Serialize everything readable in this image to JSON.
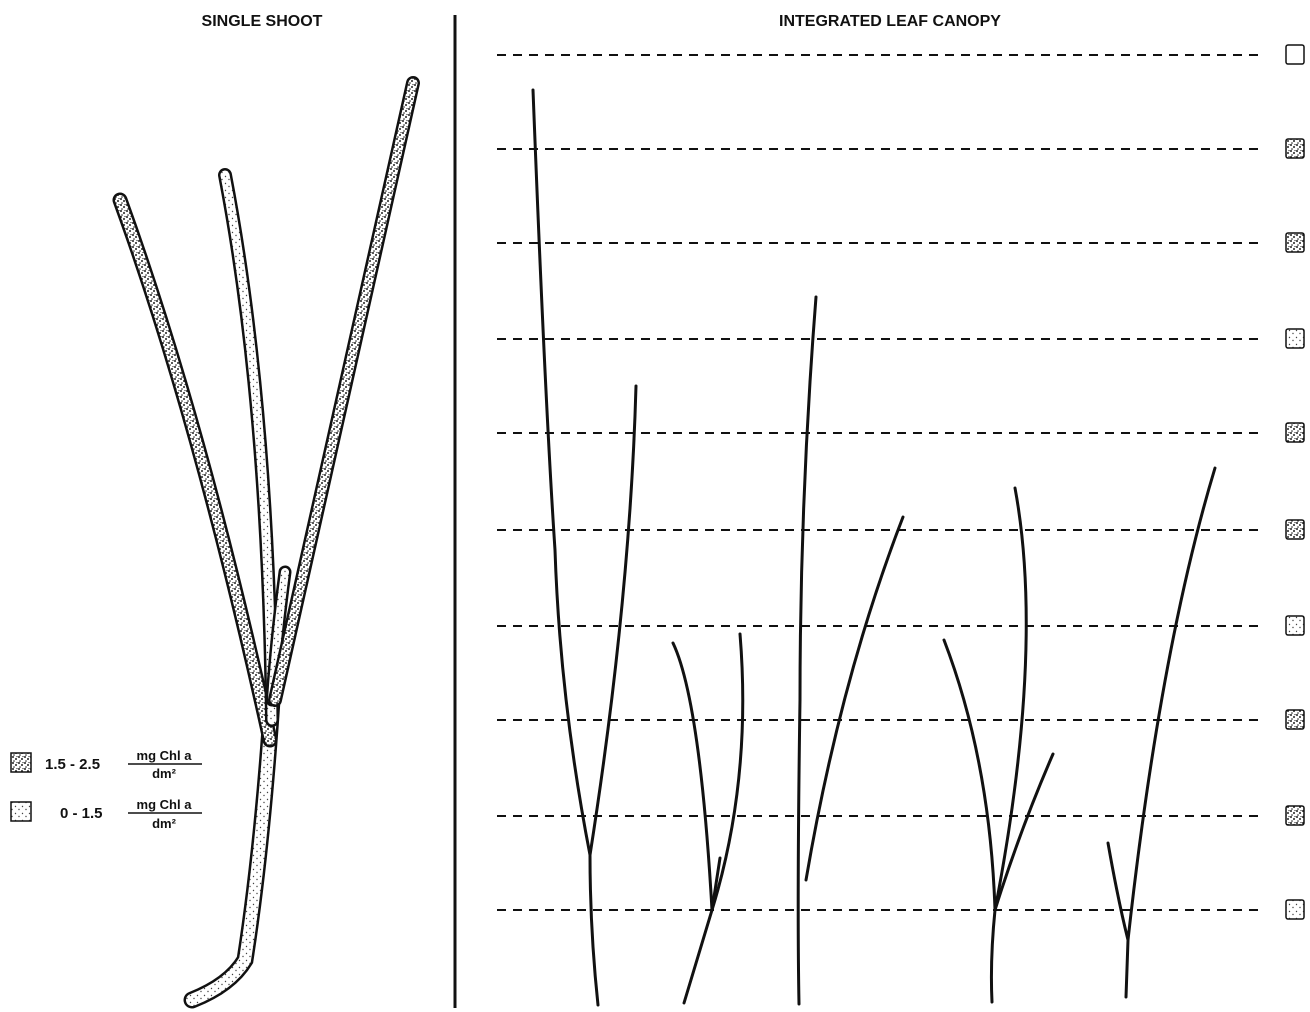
{
  "panels": {
    "left_title": "SINGLE SHOOT",
    "right_title": "INTEGRATED LEAF CANOPY"
  },
  "legend": [
    {
      "range": "1.5 - 2.5",
      "unit_numerator": "mg Chl a",
      "unit_denominator": "dm²"
    },
    {
      "range": "0 - 1.5",
      "unit_numerator": "mg Chl a",
      "unit_denominator": "dm²"
    }
  ]
}
